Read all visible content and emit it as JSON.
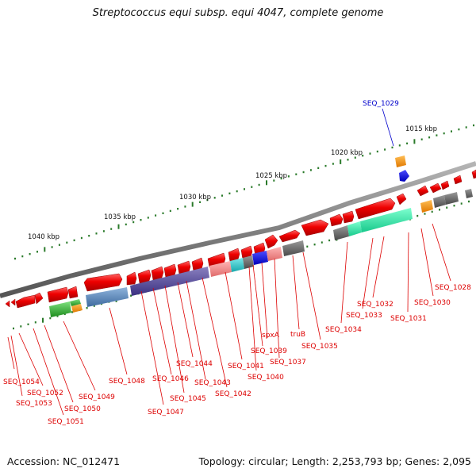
{
  "title": "Streptococcus equi subsp. equi 4047, complete genome",
  "footer": {
    "accession": "Accession: NC_012471",
    "summary": "Topology: circular; Length: 2,253,793 bp; Genes: 2,095"
  },
  "scale_labels": [
    "1040 kbp",
    "1035 kbp",
    "1030 kbp",
    "1025 kbp",
    "1020 kbp",
    "1015 kbp"
  ],
  "gene_labels": [
    {
      "text": "SEQ_1029",
      "color": "#0000cc"
    },
    {
      "text": "SEQ_1028",
      "color": "#dd0000"
    },
    {
      "text": "SEQ_1030",
      "color": "#dd0000"
    },
    {
      "text": "SEQ_1031",
      "color": "#dd0000"
    },
    {
      "text": "SEQ_1032",
      "color": "#dd0000"
    },
    {
      "text": "SEQ_1033",
      "color": "#dd0000"
    },
    {
      "text": "SEQ_1034",
      "color": "#dd0000"
    },
    {
      "text": "SEQ_1035",
      "color": "#dd0000"
    },
    {
      "text": "truB",
      "color": "#dd0000"
    },
    {
      "text": "SEQ_1037",
      "color": "#dd0000"
    },
    {
      "text": "spxA",
      "color": "#dd0000"
    },
    {
      "text": "SEQ_1039",
      "color": "#dd0000"
    },
    {
      "text": "SEQ_1040",
      "color": "#dd0000"
    },
    {
      "text": "SEQ_1041",
      "color": "#dd0000"
    },
    {
      "text": "SEQ_1042",
      "color": "#dd0000"
    },
    {
      "text": "SEQ_1043",
      "color": "#dd0000"
    },
    {
      "text": "SEQ_1044",
      "color": "#dd0000"
    },
    {
      "text": "SEQ_1045",
      "color": "#dd0000"
    },
    {
      "text": "SEQ_1046",
      "color": "#dd0000"
    },
    {
      "text": "SEQ_1047",
      "color": "#dd0000"
    },
    {
      "text": "SEQ_1048",
      "color": "#dd0000"
    },
    {
      "text": "SEQ_1049",
      "color": "#dd0000"
    },
    {
      "text": "SEQ_1050",
      "color": "#dd0000"
    },
    {
      "text": "SEQ_1051",
      "color": "#dd0000"
    },
    {
      "text": "SEQ_1052",
      "color": "#dd0000"
    },
    {
      "text": "SEQ_1053",
      "color": "#dd0000"
    },
    {
      "text": "SEQ_1054",
      "color": "#dd0000"
    }
  ],
  "colors": {
    "backbone": "#8a8a8a",
    "gene_arrow": "#ee0000",
    "tick": "#2a7a2a",
    "label_line_red": "#dd0000",
    "label_line_blue": "#0000cc"
  }
}
